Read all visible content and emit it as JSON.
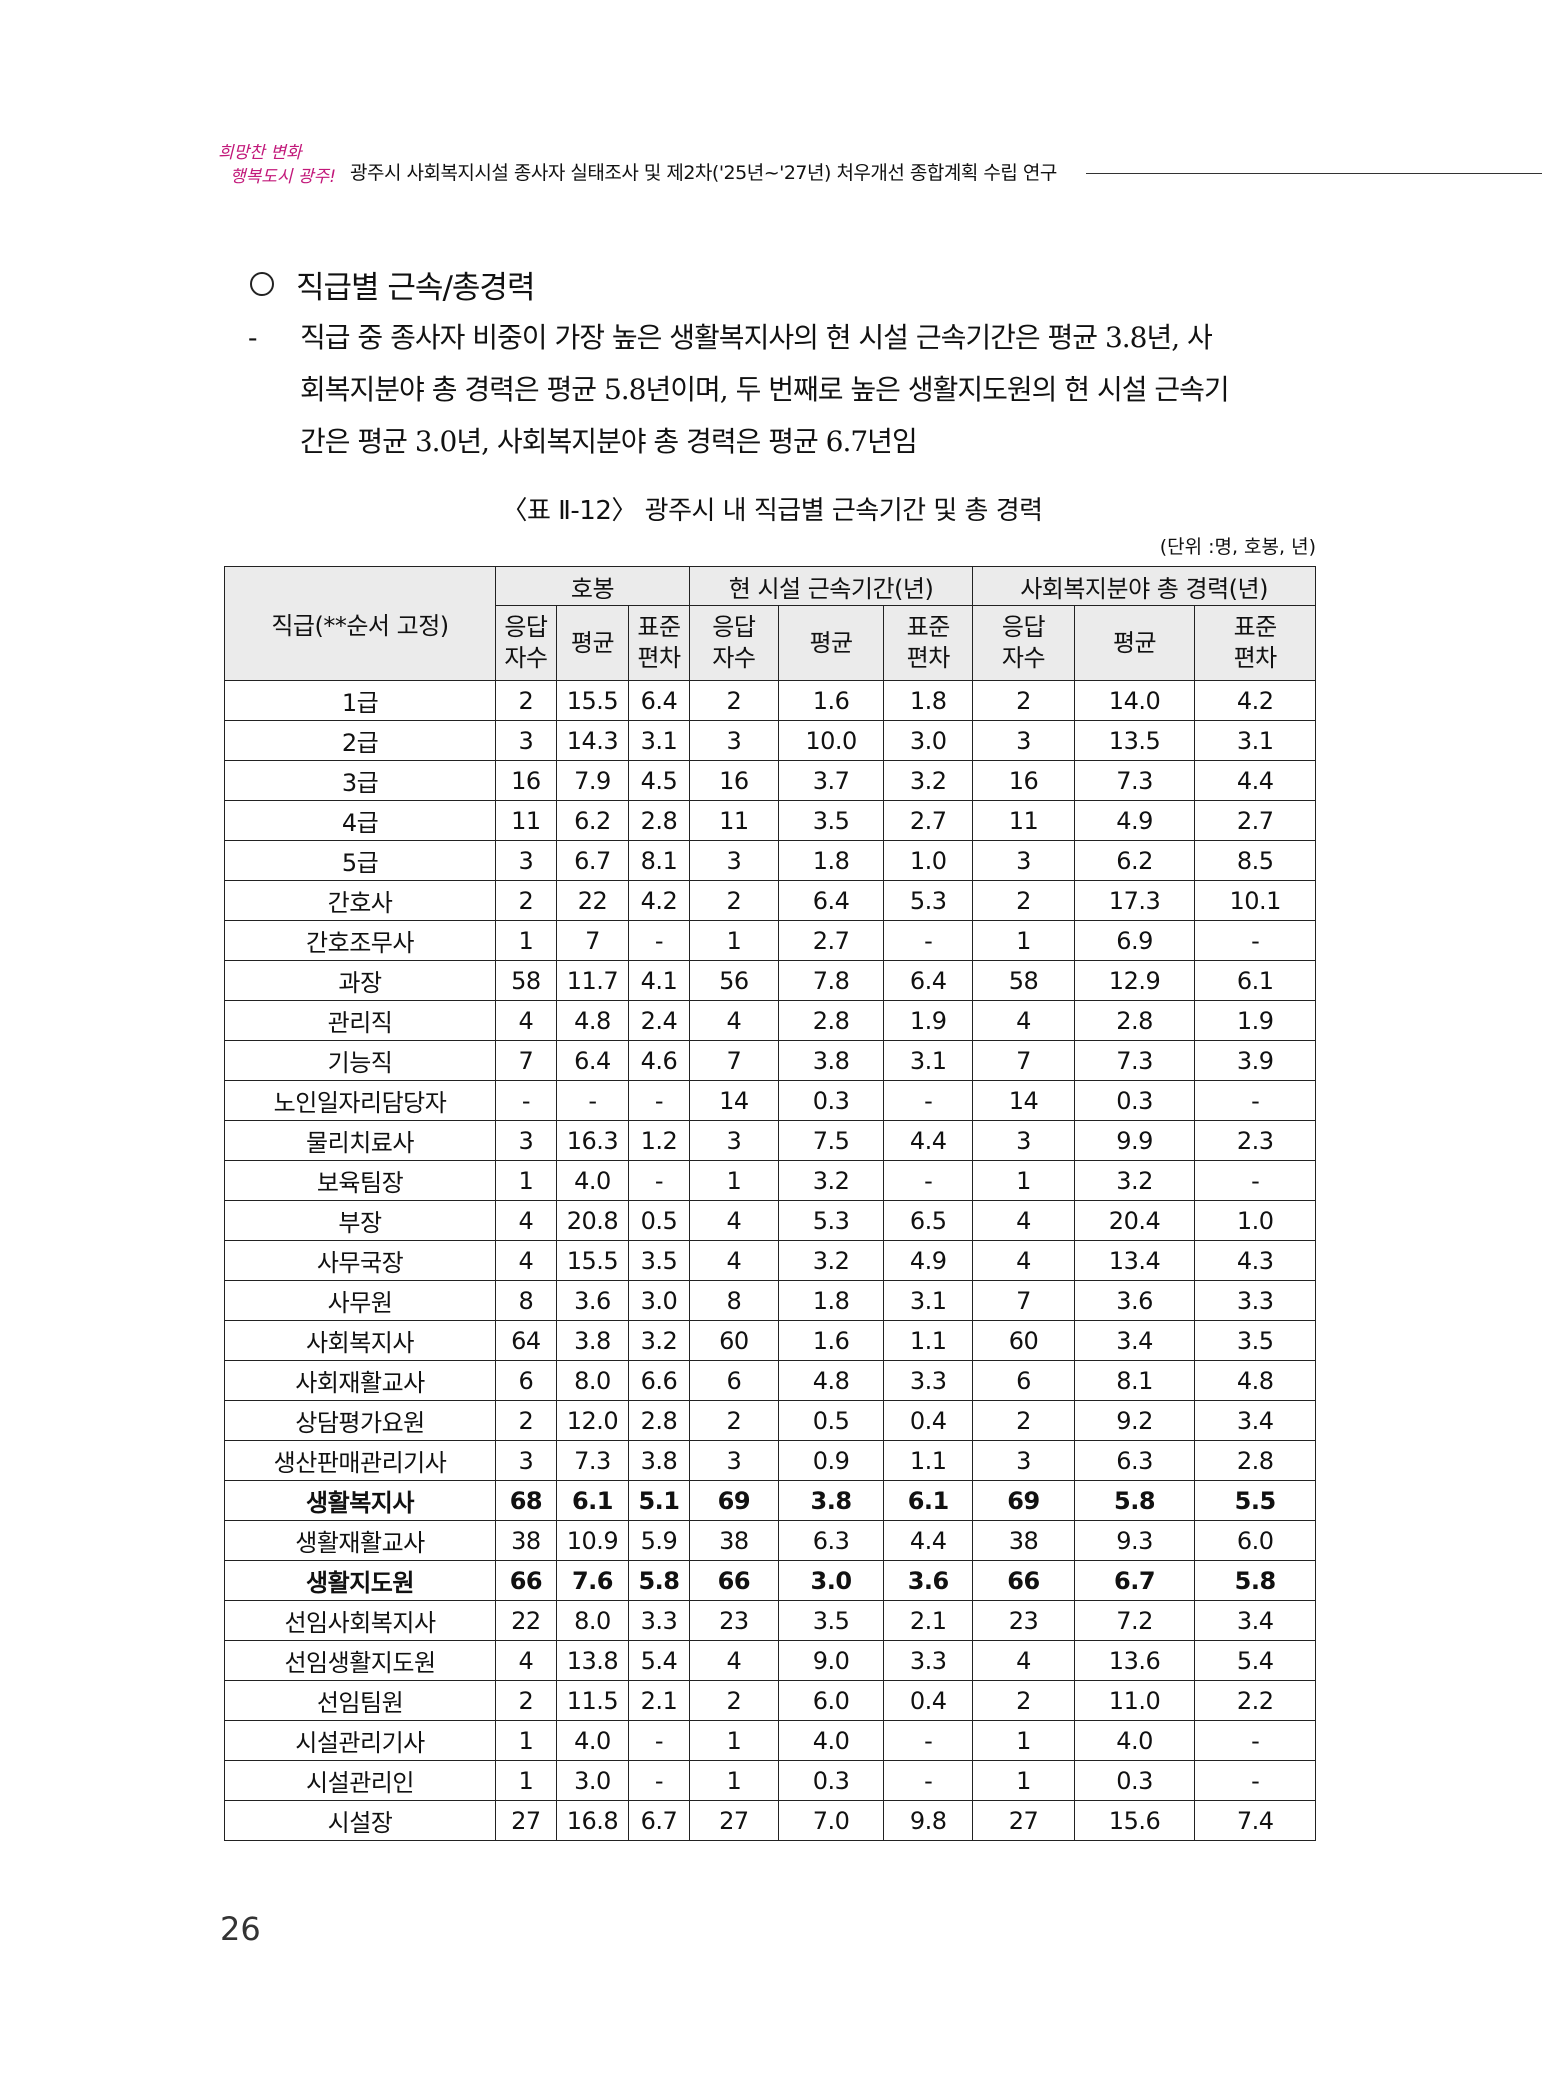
{
  "header": {
    "logo_text": "희망찬 변화 행복도시 광주!",
    "running_title": "광주시 사회복지시설 종사자 실태조사 및 제2차('25년~'27년) 처우개선 종합계획 수립 연구"
  },
  "section": {
    "heading": "직급별 근속/총경력",
    "dash": "-",
    "lines": [
      "직급 중 종사자 비중이 가장 높은 생활복지사의 현 시설 근속기간은 평균 3.8년, 사",
      "회복지분야 총 경력은 평균 5.8년이며, 두 번째로 높은 생활지도원의 현 시설 근속기",
      "간은 평균 3.0년, 사회복지분야 총 경력은 평균 6.7년임"
    ]
  },
  "table": {
    "caption": "〈표 Ⅱ-12〉 광주시 내 직급별 근속기간 및 총 경력",
    "unit": "(단위 :명, 호봉, 년)",
    "row_header": "직급(**순서 고정)",
    "groups": [
      "호봉",
      "현 시설 근속기간(년)",
      "사회복지분야 총 경력(년)"
    ],
    "subheaders": [
      "응답\n자수",
      "평균",
      "표준\n편차"
    ],
    "rows": [
      {
        "name": "1급",
        "v": [
          "2",
          "15.5",
          "6.4",
          "2",
          "1.6",
          "1.8",
          "2",
          "14.0",
          "4.2"
        ]
      },
      {
        "name": "2급",
        "v": [
          "3",
          "14.3",
          "3.1",
          "3",
          "10.0",
          "3.0",
          "3",
          "13.5",
          "3.1"
        ]
      },
      {
        "name": "3급",
        "v": [
          "16",
          "7.9",
          "4.5",
          "16",
          "3.7",
          "3.2",
          "16",
          "7.3",
          "4.4"
        ]
      },
      {
        "name": "4급",
        "v": [
          "11",
          "6.2",
          "2.8",
          "11",
          "3.5",
          "2.7",
          "11",
          "4.9",
          "2.7"
        ]
      },
      {
        "name": "5급",
        "v": [
          "3",
          "6.7",
          "8.1",
          "3",
          "1.8",
          "1.0",
          "3",
          "6.2",
          "8.5"
        ]
      },
      {
        "name": "간호사",
        "v": [
          "2",
          "22",
          "4.2",
          "2",
          "6.4",
          "5.3",
          "2",
          "17.3",
          "10.1"
        ]
      },
      {
        "name": "간호조무사",
        "v": [
          "1",
          "7",
          "-",
          "1",
          "2.7",
          "-",
          "1",
          "6.9",
          "-"
        ]
      },
      {
        "name": "과장",
        "v": [
          "58",
          "11.7",
          "4.1",
          "56",
          "7.8",
          "6.4",
          "58",
          "12.9",
          "6.1"
        ]
      },
      {
        "name": "관리직",
        "v": [
          "4",
          "4.8",
          "2.4",
          "4",
          "2.8",
          "1.9",
          "4",
          "2.8",
          "1.9"
        ]
      },
      {
        "name": "기능직",
        "v": [
          "7",
          "6.4",
          "4.6",
          "7",
          "3.8",
          "3.1",
          "7",
          "7.3",
          "3.9"
        ]
      },
      {
        "name": "노인일자리담당자",
        "v": [
          "-",
          "-",
          "-",
          "14",
          "0.3",
          "-",
          "14",
          "0.3",
          "-"
        ]
      },
      {
        "name": "물리치료사",
        "v": [
          "3",
          "16.3",
          "1.2",
          "3",
          "7.5",
          "4.4",
          "3",
          "9.9",
          "2.3"
        ]
      },
      {
        "name": "보육팀장",
        "v": [
          "1",
          "4.0",
          "-",
          "1",
          "3.2",
          "-",
          "1",
          "3.2",
          "-"
        ]
      },
      {
        "name": "부장",
        "v": [
          "4",
          "20.8",
          "0.5",
          "4",
          "5.3",
          "6.5",
          "4",
          "20.4",
          "1.0"
        ]
      },
      {
        "name": "사무국장",
        "v": [
          "4",
          "15.5",
          "3.5",
          "4",
          "3.2",
          "4.9",
          "4",
          "13.4",
          "4.3"
        ]
      },
      {
        "name": "사무원",
        "v": [
          "8",
          "3.6",
          "3.0",
          "8",
          "1.8",
          "3.1",
          "7",
          "3.6",
          "3.3"
        ]
      },
      {
        "name": "사회복지사",
        "v": [
          "64",
          "3.8",
          "3.2",
          "60",
          "1.6",
          "1.1",
          "60",
          "3.4",
          "3.5"
        ]
      },
      {
        "name": "사회재활교사",
        "v": [
          "6",
          "8.0",
          "6.6",
          "6",
          "4.8",
          "3.3",
          "6",
          "8.1",
          "4.8"
        ]
      },
      {
        "name": "상담평가요원",
        "v": [
          "2",
          "12.0",
          "2.8",
          "2",
          "0.5",
          "0.4",
          "2",
          "9.2",
          "3.4"
        ]
      },
      {
        "name": "생산판매관리기사",
        "v": [
          "3",
          "7.3",
          "3.8",
          "3",
          "0.9",
          "1.1",
          "3",
          "6.3",
          "2.8"
        ]
      },
      {
        "name": "생활복지사",
        "bold": true,
        "v": [
          "68",
          "6.1",
          "5.1",
          "69",
          "3.8",
          "6.1",
          "69",
          "5.8",
          "5.5"
        ]
      },
      {
        "name": "생활재활교사",
        "v": [
          "38",
          "10.9",
          "5.9",
          "38",
          "6.3",
          "4.4",
          "38",
          "9.3",
          "6.0"
        ]
      },
      {
        "name": "생활지도원",
        "bold": true,
        "v": [
          "66",
          "7.6",
          "5.8",
          "66",
          "3.0",
          "3.6",
          "66",
          "6.7",
          "5.8"
        ]
      },
      {
        "name": "선임사회복지사",
        "v": [
          "22",
          "8.0",
          "3.3",
          "23",
          "3.5",
          "2.1",
          "23",
          "7.2",
          "3.4"
        ]
      },
      {
        "name": "선임생활지도원",
        "v": [
          "4",
          "13.8",
          "5.4",
          "4",
          "9.0",
          "3.3",
          "4",
          "13.6",
          "5.4"
        ]
      },
      {
        "name": "선임팀원",
        "v": [
          "2",
          "11.5",
          "2.1",
          "2",
          "6.0",
          "0.4",
          "2",
          "11.0",
          "2.2"
        ]
      },
      {
        "name": "시설관리기사",
        "v": [
          "1",
          "4.0",
          "-",
          "1",
          "4.0",
          "-",
          "1",
          "4.0",
          "-"
        ]
      },
      {
        "name": "시설관리인",
        "v": [
          "1",
          "3.0",
          "-",
          "1",
          "0.3",
          "-",
          "1",
          "0.3",
          "-"
        ]
      },
      {
        "name": "시설장",
        "v": [
          "27",
          "16.8",
          "6.7",
          "27",
          "7.0",
          "9.8",
          "27",
          "15.6",
          "7.4"
        ]
      }
    ]
  },
  "footer": {
    "page_number": "26"
  },
  "colors": {
    "logo": "#c2187a",
    "header_bg": "#ebebeb"
  }
}
